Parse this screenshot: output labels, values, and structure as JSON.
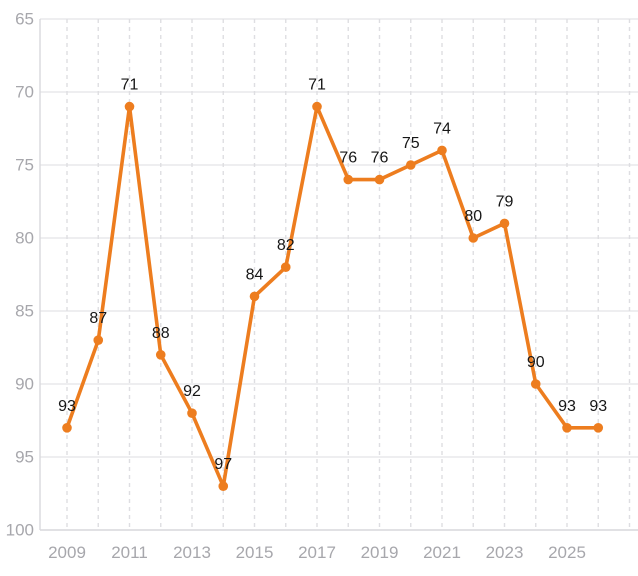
{
  "chart_data": {
    "type": "line",
    "title": "",
    "x": [
      2009,
      2010,
      2011,
      2012,
      2013,
      2014,
      2015,
      2016,
      2017,
      2018,
      2019,
      2020,
      2021,
      2022,
      2023,
      2024,
      2025,
      2026
    ],
    "values": [
      93,
      87,
      71,
      88,
      92,
      97,
      84,
      82,
      71,
      76,
      76,
      75,
      74,
      80,
      79,
      90,
      93,
      93
    ],
    "point_labels": [
      "93",
      "87",
      "71",
      "88",
      "92",
      "97",
      "84",
      "82",
      "71",
      "76",
      "76",
      "75",
      "74",
      "80",
      "79",
      "90",
      "93",
      "93"
    ],
    "y_axis": {
      "inverted": true,
      "min": 65,
      "max": 100,
      "tick_values": [
        65,
        70,
        75,
        80,
        85,
        90,
        95,
        100
      ],
      "tick_labels": [
        "65",
        "70",
        "75",
        "80",
        "85",
        "90",
        "95",
        "100"
      ]
    },
    "x_axis": {
      "tick_values": [
        2009,
        2011,
        2013,
        2015,
        2017,
        2019,
        2021,
        2023,
        2025
      ],
      "tick_labels": [
        "2009",
        "2011",
        "2013",
        "2015",
        "2017",
        "2019",
        "2021",
        "2023",
        "2025"
      ],
      "grid_year_start": 2009,
      "grid_year_end": 2027
    },
    "grid": {
      "horizontal": "solid",
      "vertical": "dashed"
    },
    "legend": {
      "visible": false
    },
    "colors": {
      "line": "#ED7D1F",
      "marker": "#ED7D1F",
      "grid_solid": "#E3E3E6",
      "grid_dashed": "#DEDEE2",
      "axis_line": "#D9D9DD",
      "axis_text": "#A7A7AC",
      "data_label": "#161616",
      "background": "#FFFFFF"
    }
  }
}
